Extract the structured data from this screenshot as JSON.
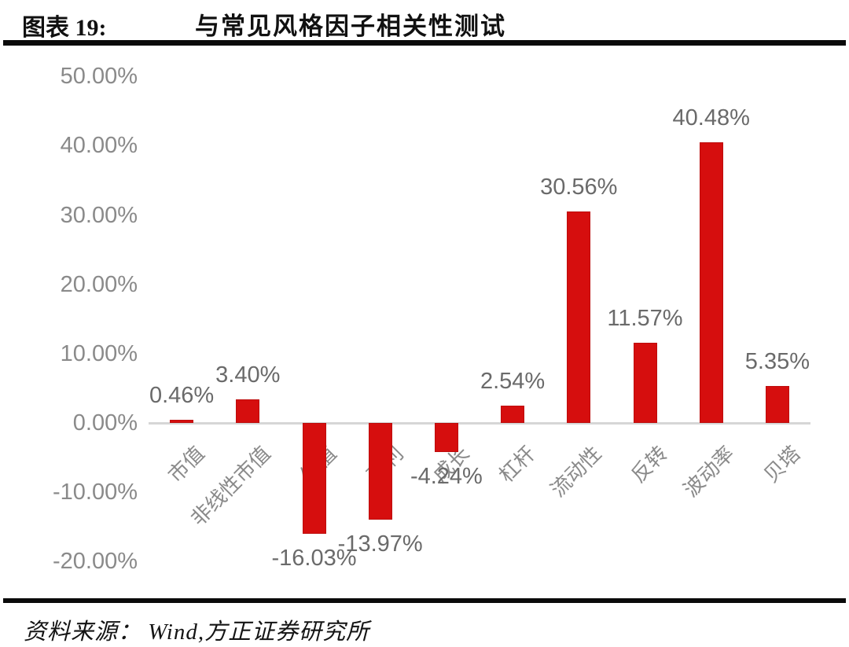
{
  "figure": {
    "label": "图表 19:",
    "title": "与常见风格因子相关性测试"
  },
  "source": {
    "text": "资料来源： Wind,方正证券研究所"
  },
  "chart_data": {
    "type": "bar",
    "title": "与常见风格因子相关性测试",
    "categories": [
      "市值",
      "非线性市值",
      "估值",
      "盈利",
      "成长",
      "杠杆",
      "流动性",
      "反转",
      "波动率",
      "贝塔"
    ],
    "values": [
      0.46,
      3.4,
      -16.03,
      -13.97,
      -4.24,
      2.54,
      30.56,
      11.57,
      40.48,
      5.35
    ],
    "data_labels": [
      "0.46%",
      "3.40%",
      "-16.03%",
      "-13.97%",
      "-4.24%",
      "2.54%",
      "30.56%",
      "11.57%",
      "40.48%",
      "5.35%"
    ],
    "y_ticks": [
      {
        "value": 50,
        "label": "50.00%"
      },
      {
        "value": 40,
        "label": "40.00%"
      },
      {
        "value": 30,
        "label": "30.00%"
      },
      {
        "value": 20,
        "label": "20.00%"
      },
      {
        "value": 10,
        "label": "10.00%"
      },
      {
        "value": 0,
        "label": "0.00%"
      },
      {
        "value": -10,
        "label": "-10.00%"
      },
      {
        "value": -20,
        "label": "-20.00%"
      }
    ],
    "ylim": [
      -20,
      50
    ],
    "grid": false,
    "legend": null,
    "xlabel": "",
    "ylabel": "",
    "bar_color": "#d60e0e",
    "bar_border_color": "#bd0d0d",
    "axis_line_color": "#d6d6d6",
    "tick_label_color": "#8a8a8a",
    "data_label_color": "#6a6a6a",
    "category_label_color": "#8a8a8a"
  }
}
